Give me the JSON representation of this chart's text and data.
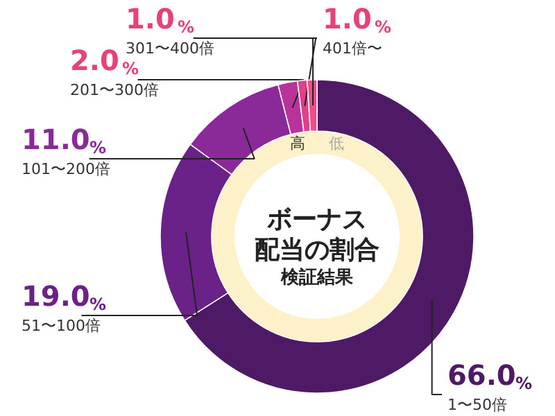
{
  "chart_data": {
    "type": "donut",
    "title": "ボーナス配当の割合",
    "subtitle": "検証結果",
    "categories": [
      "1〜50倍",
      "51〜100倍",
      "101〜200倍",
      "201〜300倍",
      "301〜400倍",
      "401倍〜"
    ],
    "values": [
      66.0,
      19.0,
      11.0,
      2.0,
      1.0,
      1.0
    ],
    "colors": [
      "#4e1a66",
      "#6a2288",
      "#8a2a98",
      "#b8339a",
      "#e0408a",
      "#f04c8a"
    ],
    "value_labels": [
      "66.0%",
      "19.0%",
      "11.0%",
      "2.0%",
      "1.0%",
      "1.0%"
    ],
    "annotations": [
      "高",
      "低"
    ]
  }
}
